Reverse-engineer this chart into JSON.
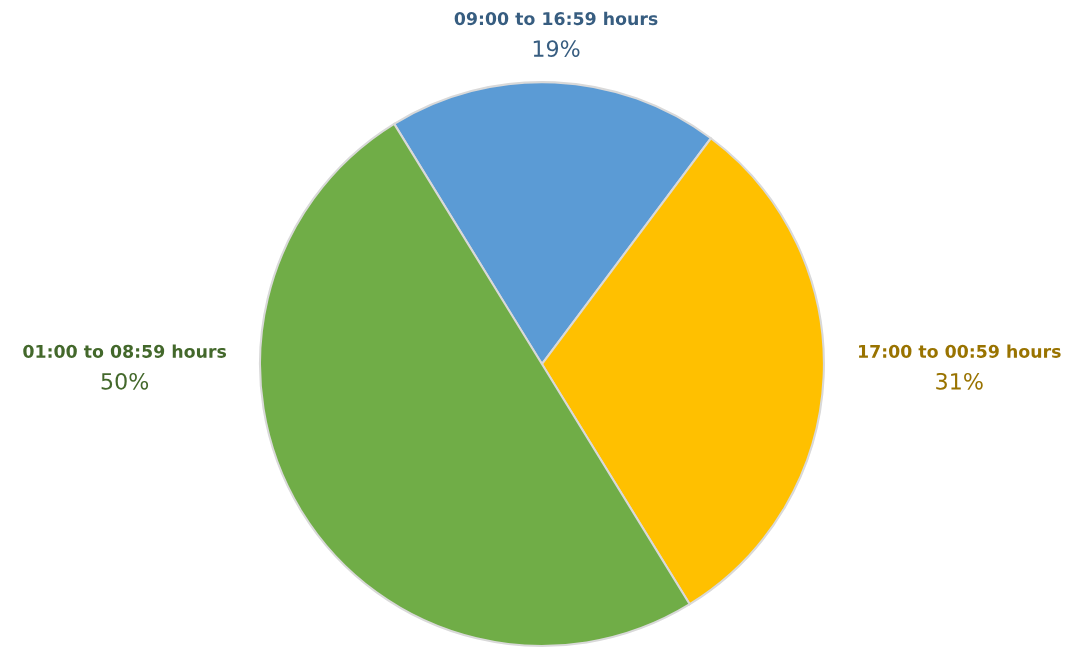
{
  "chart_data": {
    "type": "pie",
    "categories": [
      "09:00 to 16:59 hours",
      "17:00 to 00:59 hours",
      "01:00 to 08:59 hours"
    ],
    "values": [
      19,
      31,
      50
    ],
    "colors": [
      "#5b9bd5",
      "#ffc000",
      "#70ad47"
    ],
    "value_labels": [
      "19%",
      "31%",
      "50%"
    ]
  }
}
